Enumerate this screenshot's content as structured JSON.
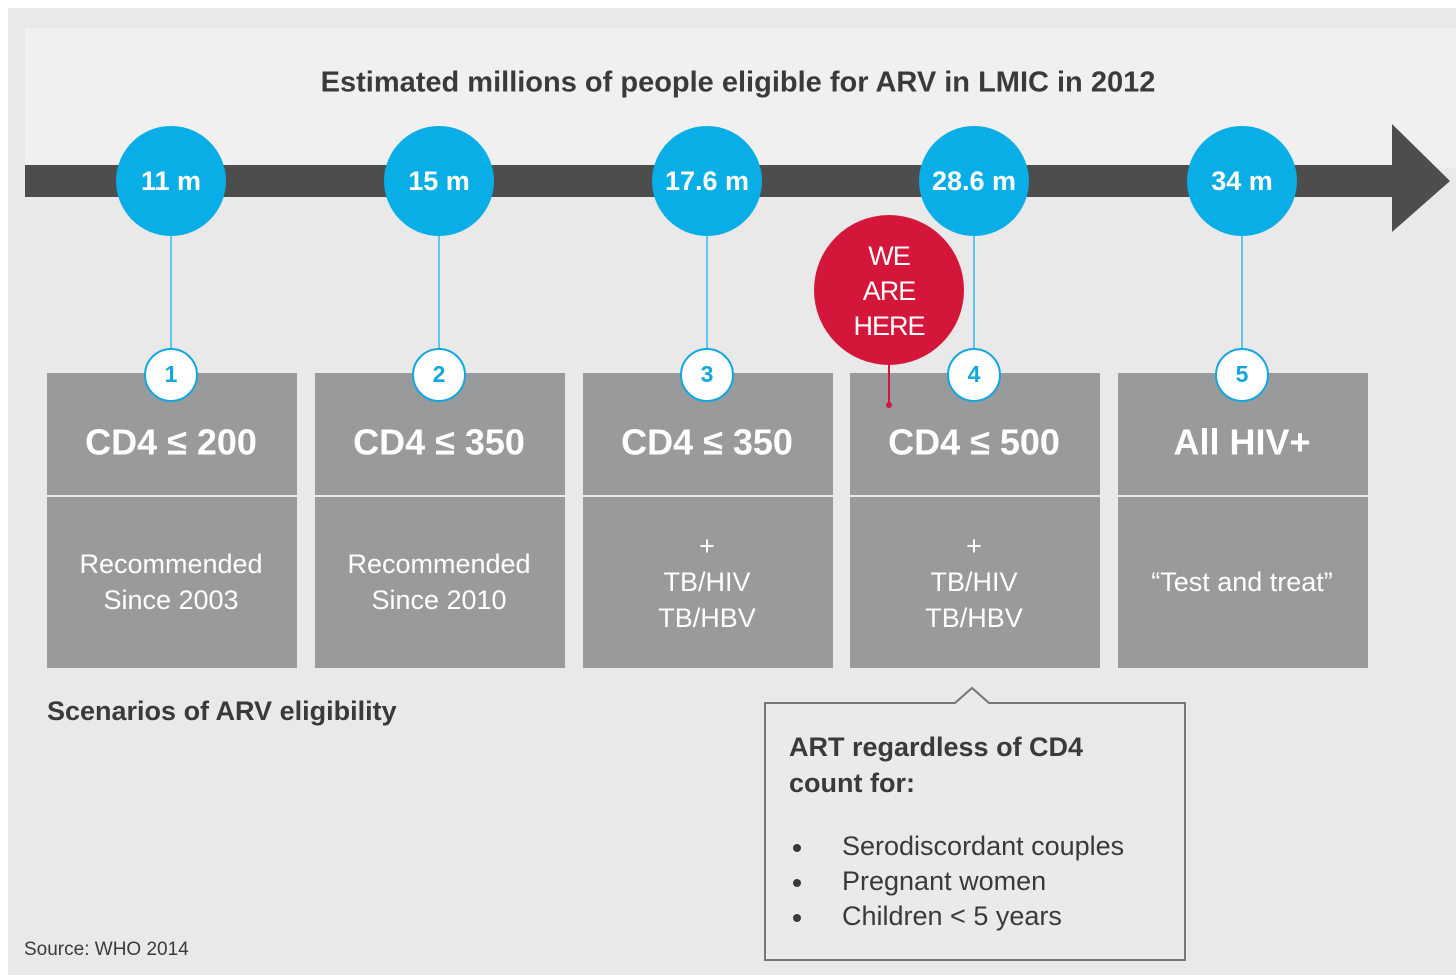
{
  "title": "Estimated millions of people eligible for ARV in LMIC in 2012",
  "milestones": [
    {
      "value": "11 m",
      "number": "1",
      "heading": "CD4 ≤ 200",
      "description": [
        "Recommended",
        "Since 2003"
      ]
    },
    {
      "value": "15 m",
      "number": "2",
      "heading": "CD4 ≤ 350",
      "description": [
        "Recommended",
        "Since 2010"
      ]
    },
    {
      "value": "17.6 m",
      "number": "3",
      "heading": "CD4 ≤ 350",
      "description": [
        "+",
        "TB/HIV",
        "TB/HBV"
      ]
    },
    {
      "value": "28.6 m",
      "number": "4",
      "heading": "CD4 ≤ 500",
      "description": [
        "+",
        "TB/HIV",
        "TB/HBV"
      ]
    },
    {
      "value": "34 m",
      "number": "5",
      "heading": "All HIV+",
      "description": [
        "“Test and treat”"
      ]
    }
  ],
  "marker": [
    "WE",
    "ARE",
    "HERE"
  ],
  "section_label": "Scenarios of ARV eligibility",
  "callout": {
    "heading": [
      "ART regardless of CD4",
      "count for:"
    ],
    "items": [
      "Serodiscordant couples",
      "Pregnant women",
      "Children < 5 years"
    ]
  },
  "source": "Source: WHO 2014"
}
